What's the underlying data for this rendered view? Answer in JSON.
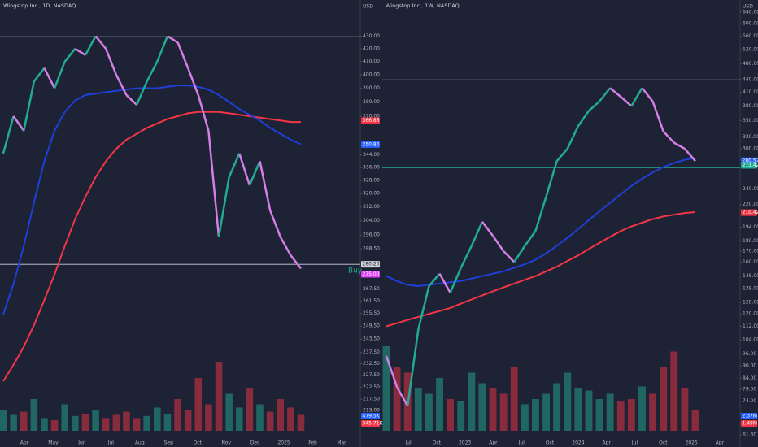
{
  "panels": [
    {
      "title": "Wingstop Inc., 1D, NASDAQ",
      "currency": "USD",
      "scale": "log",
      "ylim": [
        205,
        445
      ],
      "yticks": [
        {
          "value": 430,
          "label": "430.00"
        },
        {
          "value": 420,
          "label": "420.00"
        },
        {
          "value": 410,
          "label": "410.00"
        },
        {
          "value": 400,
          "label": "400.00"
        },
        {
          "value": 390,
          "label": "390.00"
        },
        {
          "value": 380,
          "label": "380.00"
        },
        {
          "value": 370,
          "label": "370.00"
        },
        {
          "value": 344,
          "label": "344.00"
        },
        {
          "value": 336,
          "label": "336.00"
        },
        {
          "value": 328,
          "label": "328.00"
        },
        {
          "value": 320,
          "label": "320.00"
        },
        {
          "value": 312,
          "label": "312.00"
        },
        {
          "value": 304,
          "label": "304.00"
        },
        {
          "value": 296,
          "label": "296.00"
        },
        {
          "value": 288.5,
          "label": "288.50"
        },
        {
          "value": 267.5,
          "label": "267.50"
        },
        {
          "value": 261.5,
          "label": "261.50"
        },
        {
          "value": 255.5,
          "label": "255.50"
        },
        {
          "value": 249.5,
          "label": "249.50"
        },
        {
          "value": 243.5,
          "label": "243.50"
        },
        {
          "value": 237.5,
          "label": "237.50"
        },
        {
          "value": 232.5,
          "label": "232.50"
        },
        {
          "value": 227.5,
          "label": "227.50"
        },
        {
          "value": 222.5,
          "label": "222.50"
        },
        {
          "value": 217.5,
          "label": "217.50"
        },
        {
          "value": 213,
          "label": "213.00"
        }
      ],
      "time_labels": [
        "Apr",
        "May",
        "Jun",
        "Jul",
        "Aug",
        "Sep",
        "Oct",
        "Nov",
        "Dec",
        "2025",
        "Feb",
        "Mar"
      ],
      "price": [
        345,
        370,
        360,
        395,
        405,
        390,
        410,
        420,
        415,
        430,
        420,
        400,
        385,
        378,
        395,
        410,
        430,
        425,
        405,
        385,
        360,
        295,
        330,
        345,
        325,
        340,
        310,
        295,
        285,
        278
      ],
      "ma_fast": [
        255,
        270,
        290,
        315,
        340,
        360,
        373,
        381,
        385,
        386,
        387,
        388,
        389,
        390,
        390,
        390,
        391,
        392,
        392,
        391,
        389,
        385,
        380,
        375,
        371,
        367,
        362,
        358,
        354,
        351
      ],
      "ma_slow": [
        225,
        232,
        240,
        250,
        262,
        275,
        290,
        305,
        318,
        330,
        340,
        348,
        354,
        358,
        362,
        365,
        368,
        370,
        372,
        373,
        373,
        373,
        372,
        371,
        370,
        369,
        368,
        367,
        366,
        366
      ],
      "volume": [
        20,
        15,
        18,
        30,
        12,
        10,
        25,
        14,
        16,
        20,
        12,
        15,
        18,
        12,
        14,
        22,
        16,
        30,
        20,
        50,
        25,
        65,
        35,
        22,
        40,
        25,
        18,
        30,
        22,
        15
      ],
      "volume_lim": [
        0,
        100
      ],
      "levels": [
        {
          "value": 430,
          "color": "#50535e"
        },
        {
          "value": 280.2,
          "color": "#d1d4dc"
        },
        {
          "value": 270,
          "color": "#f23645"
        },
        {
          "value": 267.5,
          "color": "#50535e"
        }
      ],
      "badges": [
        {
          "value": 366.86,
          "label": "366.86",
          "color": "#f23645"
        },
        {
          "value": 350.8,
          "label": "350.80",
          "color": "#2962ff"
        },
        {
          "value": 280.2,
          "label": "280.20",
          "color": "#d1d4dc"
        },
        {
          "value": 275,
          "label": "275.00",
          "color": "#e040fb"
        }
      ],
      "volume_badges": [
        {
          "label": "479.5K",
          "color": "#2962ff"
        },
        {
          "label": "345.71K",
          "color": "#f23645"
        }
      ],
      "annotation": {
        "text": "Buy",
        "value": 280.2
      }
    },
    {
      "title": "Wingstop Inc., 1W, NASDAQ",
      "currency": "USD",
      "scale": "log",
      "ylim": [
        60,
        660
      ],
      "yticks": [
        {
          "value": 640,
          "label": "640.00"
        },
        {
          "value": 600,
          "label": "600.00"
        },
        {
          "value": 560,
          "label": "560.00"
        },
        {
          "value": 520,
          "label": "520.00"
        },
        {
          "value": 480,
          "label": "480.00"
        },
        {
          "value": 440,
          "label": "440.00"
        },
        {
          "value": 410,
          "label": "410.00"
        },
        {
          "value": 380,
          "label": "380.00"
        },
        {
          "value": 350,
          "label": "350.00"
        },
        {
          "value": 320,
          "label": "320.00"
        },
        {
          "value": 300,
          "label": "300.00"
        },
        {
          "value": 240,
          "label": "240.00"
        },
        {
          "value": 220,
          "label": "220.00"
        },
        {
          "value": 194,
          "label": "194.00"
        },
        {
          "value": 180,
          "label": "180.00"
        },
        {
          "value": 170,
          "label": "170.00"
        },
        {
          "value": 160,
          "label": "160.00"
        },
        {
          "value": 148,
          "label": "148.00"
        },
        {
          "value": 138,
          "label": "138.00"
        },
        {
          "value": 128,
          "label": "128.00"
        },
        {
          "value": 120,
          "label": "120.00"
        },
        {
          "value": 112,
          "label": "112.00"
        },
        {
          "value": 104,
          "label": "104.00"
        },
        {
          "value": 96,
          "label": "96.00"
        },
        {
          "value": 90,
          "label": "90.00"
        },
        {
          "value": 84,
          "label": "84.00"
        },
        {
          "value": 79,
          "label": "79.00"
        },
        {
          "value": 74,
          "label": "74.00"
        },
        {
          "value": 65,
          "label": "65.00"
        },
        {
          "value": 61.3,
          "label": "61.30"
        }
      ],
      "time_labels": [
        "Jul",
        "Oct",
        "2023",
        "Apr",
        "Jul",
        "Oct",
        "2024",
        "Apr",
        "Jul",
        "Oct",
        "2025",
        "Apr"
      ],
      "price": [
        95,
        80,
        72,
        110,
        140,
        150,
        135,
        155,
        175,
        200,
        185,
        170,
        160,
        175,
        190,
        230,
        280,
        300,
        340,
        370,
        390,
        420,
        400,
        380,
        420,
        390,
        330,
        310,
        300,
        280
      ],
      "ma_fast": [
        148,
        144,
        141,
        140,
        141,
        142,
        143,
        144,
        146,
        148,
        150,
        152,
        155,
        158,
        162,
        168,
        175,
        183,
        192,
        202,
        212,
        222,
        233,
        244,
        254,
        263,
        271,
        277,
        282,
        285
      ],
      "ma_slow": [
        112,
        114,
        116,
        118,
        120,
        122,
        124,
        127,
        130,
        133,
        136,
        139,
        142,
        145,
        148,
        152,
        156,
        161,
        166,
        172,
        178,
        184,
        190,
        195,
        199,
        203,
        206,
        208,
        210,
        211
      ],
      "volume": [
        80,
        60,
        55,
        40,
        35,
        50,
        30,
        28,
        55,
        45,
        40,
        35,
        60,
        25,
        30,
        35,
        45,
        55,
        40,
        38,
        30,
        35,
        28,
        30,
        42,
        35,
        60,
        75,
        40,
        20
      ],
      "volume_lim": [
        0,
        100
      ],
      "levels": [
        {
          "value": 440,
          "color": "#50535e"
        },
        {
          "value": 270,
          "color": "#22ab94"
        }
      ],
      "badges": [
        {
          "value": 280.57,
          "label": "280.57",
          "color": "#2962ff"
        },
        {
          "value": 273.42,
          "label": "273.42",
          "color": "#22ab94"
        },
        {
          "value": 210.42,
          "label": "210.42",
          "color": "#f23645"
        }
      ],
      "volume_badges": [
        {
          "label": "2.37M",
          "color": "#2962ff"
        },
        {
          "label": "1.49M",
          "color": "#f23645"
        }
      ]
    }
  ]
}
